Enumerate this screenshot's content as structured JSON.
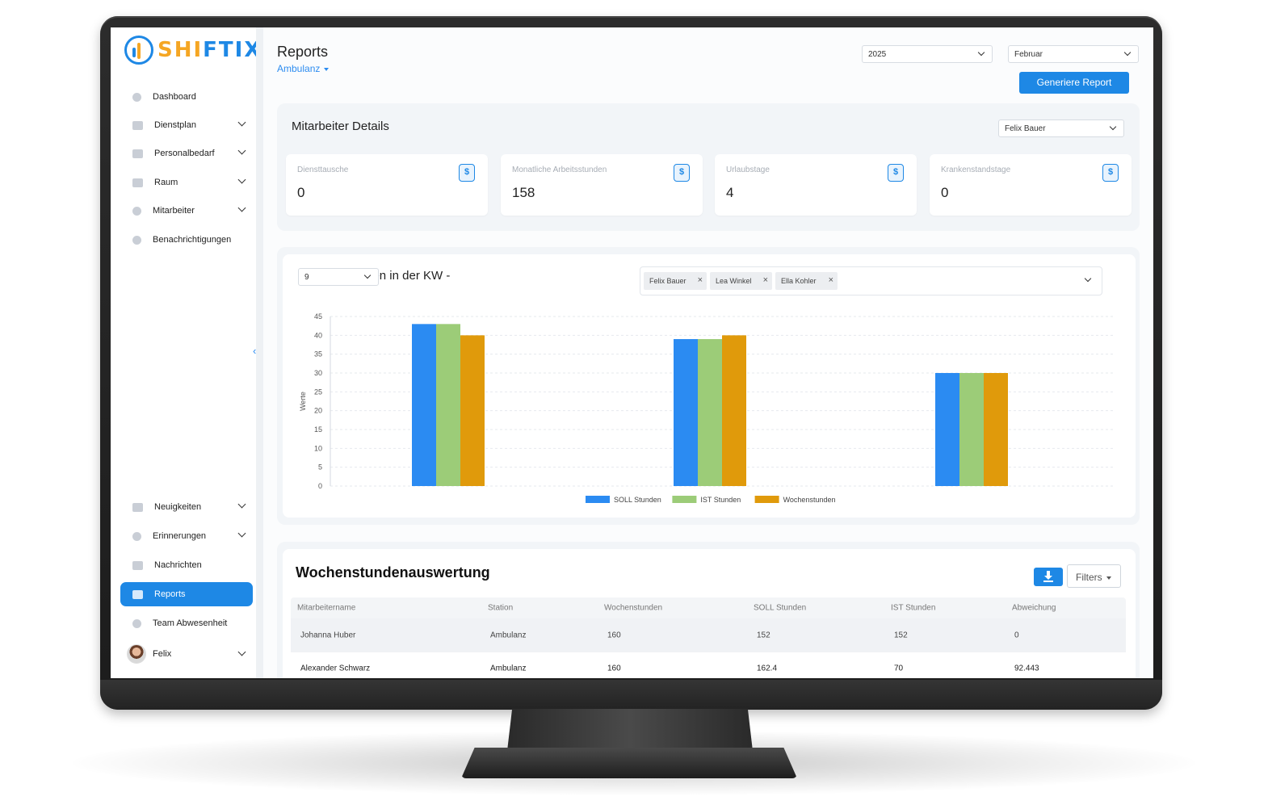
{
  "brand": {
    "part_a": "SHI",
    "part_b": "FTIX"
  },
  "sidebar": {
    "items": [
      {
        "label": "Dashboard",
        "icon": "dashboard-icon",
        "has_chevron": false
      },
      {
        "label": "Dienstplan",
        "icon": "schedule-icon",
        "has_chevron": true
      },
      {
        "label": "Personalbedarf",
        "icon": "people-icon",
        "has_chevron": true
      },
      {
        "label": "Raum",
        "icon": "room-icon",
        "has_chevron": true
      },
      {
        "label": "Mitarbeiter",
        "icon": "user-icon",
        "has_chevron": true
      },
      {
        "label": "Benachrichtigungen",
        "icon": "bell-icon",
        "has_chevron": false
      }
    ],
    "bottom_items": [
      {
        "label": "Neuigkeiten",
        "icon": "news-icon",
        "has_chevron": true
      },
      {
        "label": "Erinnerungen",
        "icon": "bell-icon",
        "has_chevron": true
      },
      {
        "label": "Nachrichten",
        "icon": "mail-icon",
        "has_chevron": false
      },
      {
        "label": "Reports",
        "icon": "report-icon",
        "has_chevron": false,
        "active": true
      },
      {
        "label": "Team Abwesenheit",
        "icon": "team-absence-icon",
        "has_chevron": false
      }
    ],
    "user": {
      "name": "Felix"
    }
  },
  "header": {
    "title": "Reports",
    "subtitle": "Ambulanz",
    "year_select": "2025",
    "month_select": "Februar",
    "generate_button": "Generiere Report"
  },
  "details": {
    "title": "Mitarbeiter Details",
    "employee_select": "Felix Bauer",
    "stats": [
      {
        "label": "Diensttausche",
        "value": "0",
        "badge": "$"
      },
      {
        "label": "Monatliche Arbeitsstunden",
        "value": "158",
        "badge": "$"
      },
      {
        "label": "Urlaubstage",
        "value": "4",
        "badge": "$"
      },
      {
        "label": "Krankenstandstage",
        "value": "0",
        "badge": "$"
      }
    ]
  },
  "weekly_chart": {
    "title": "Wochenstunden in der KW -",
    "kw_select": "9",
    "tags": [
      "Felix Bauer",
      "Lea Winkel",
      "Ella Kohler"
    ]
  },
  "chart_data": {
    "type": "bar",
    "categories": [
      "",
      "",
      ""
    ],
    "series": [
      {
        "name": "SOLL Stunden",
        "values": [
          43,
          39,
          30
        ],
        "color": "#2b8bf2"
      },
      {
        "name": "IST Stunden",
        "values": [
          43,
          39,
          30
        ],
        "color": "#9ccc78"
      },
      {
        "name": "Wochenstunden",
        "values": [
          40,
          40,
          30
        ],
        "color": "#e09a0b"
      }
    ],
    "ylabel": "Werte",
    "ylim": [
      0,
      45
    ],
    "yticks": [
      0,
      5,
      10,
      15,
      20,
      25,
      30,
      35,
      40,
      45
    ],
    "grid": true,
    "legend": "bottom"
  },
  "table": {
    "title": "Wochenstundenauswertung",
    "filter_label": "Filters",
    "columns": [
      "Mitarbeitername",
      "Station",
      "Wochenstunden",
      "SOLL Stunden",
      "IST Stunden",
      "Abweichung"
    ],
    "rows": [
      [
        "Johanna Huber",
        "Ambulanz",
        "160",
        "152",
        "152",
        "0"
      ],
      [
        "Alexander Schwarz",
        "Ambulanz",
        "160",
        "162.4",
        "70",
        "92.443"
      ]
    ]
  }
}
